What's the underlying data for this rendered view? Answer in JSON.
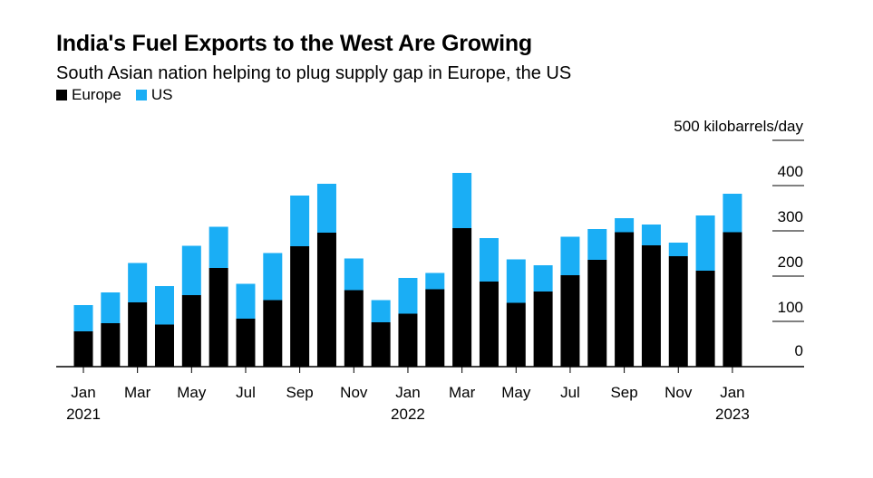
{
  "title": "India's Fuel Exports to the West Are Growing",
  "subtitle": "South Asian nation helping to plug supply gap in Europe, the US",
  "colors": {
    "europe": "#000000",
    "us": "#1aaef5"
  },
  "chart_data": {
    "type": "bar",
    "stacked": true,
    "title": "India's Fuel Exports to the West Are Growing",
    "subtitle": "South Asian nation helping to plug supply gap in Europe, the US",
    "ylabel": "500 kilobarrels/day",
    "ylim": [
      0,
      500
    ],
    "yticks": [
      0,
      100,
      200,
      300,
      400
    ],
    "legend_position": "top-left",
    "x": [
      "2021-01",
      "2021-02",
      "2021-03",
      "2021-04",
      "2021-05",
      "2021-06",
      "2021-07",
      "2021-08",
      "2021-09",
      "2021-10",
      "2021-11",
      "2021-12",
      "2022-01",
      "2022-02",
      "2022-03",
      "2022-04",
      "2022-05",
      "2022-06",
      "2022-07",
      "2022-08",
      "2022-09",
      "2022-10",
      "2022-11",
      "2022-12",
      "2023-01"
    ],
    "xtick_labels": [
      {
        "index": 0,
        "month": "Jan",
        "year": "2021"
      },
      {
        "index": 2,
        "month": "Mar",
        "year": ""
      },
      {
        "index": 4,
        "month": "May",
        "year": ""
      },
      {
        "index": 6,
        "month": "Jul",
        "year": ""
      },
      {
        "index": 8,
        "month": "Sep",
        "year": ""
      },
      {
        "index": 10,
        "month": "Nov",
        "year": ""
      },
      {
        "index": 12,
        "month": "Jan",
        "year": "2022"
      },
      {
        "index": 14,
        "month": "Mar",
        "year": ""
      },
      {
        "index": 16,
        "month": "May",
        "year": ""
      },
      {
        "index": 18,
        "month": "Jul",
        "year": ""
      },
      {
        "index": 20,
        "month": "Sep",
        "year": ""
      },
      {
        "index": 22,
        "month": "Nov",
        "year": ""
      },
      {
        "index": 24,
        "month": "Jan",
        "year": "2023"
      }
    ],
    "series": [
      {
        "name": "Europe",
        "values": [
          78,
          96,
          142,
          93,
          158,
          218,
          106,
          147,
          266,
          296,
          169,
          98,
          117,
          171,
          306,
          188,
          141,
          166,
          202,
          236,
          297,
          268,
          244,
          212,
          297
        ]
      },
      {
        "name": "US",
        "values": [
          58,
          68,
          87,
          85,
          109,
          91,
          77,
          104,
          112,
          108,
          70,
          49,
          79,
          36,
          122,
          96,
          96,
          58,
          85,
          68,
          31,
          46,
          30,
          122,
          85
        ]
      }
    ]
  }
}
